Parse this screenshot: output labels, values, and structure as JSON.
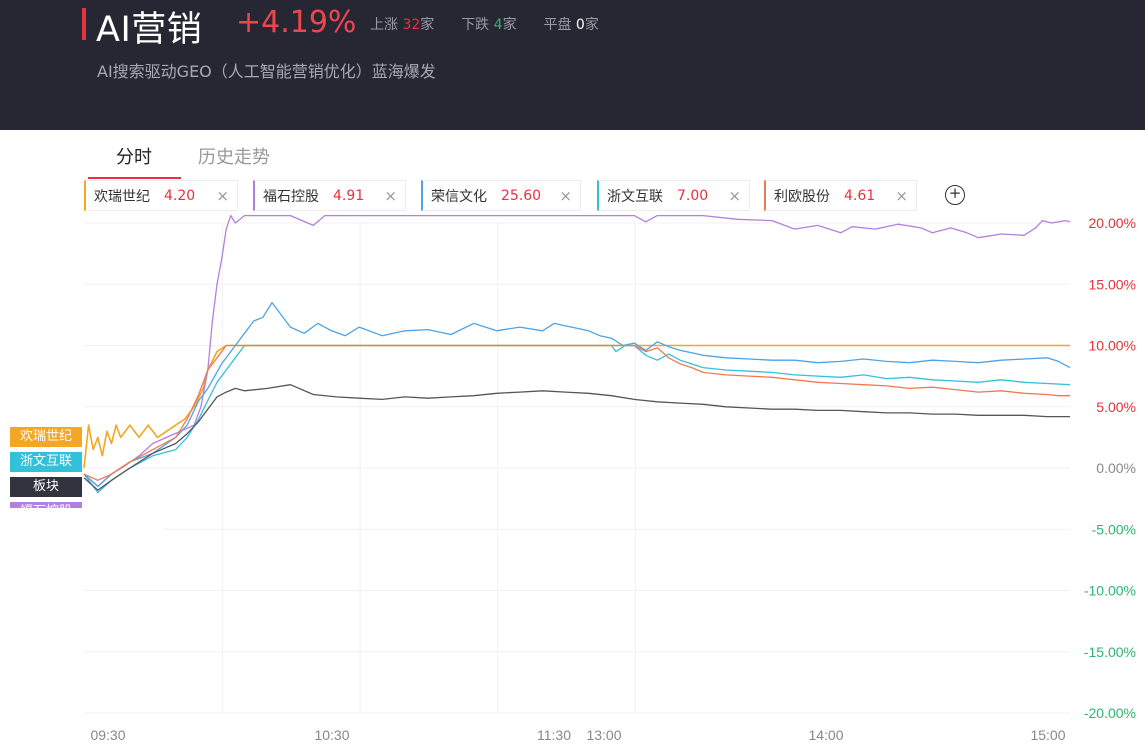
{
  "header": {
    "title": "AI营销",
    "change_pct": "+4.19%",
    "up_label": "上涨",
    "up_count": "32",
    "down_label": "下跌",
    "down_count": "4",
    "flat_label": "平盘",
    "flat_count": "0",
    "unit": "家",
    "subtitle": "AI搜索驱动GEO（人工智能营销优化）蓝海爆发"
  },
  "tabs": [
    {
      "label": "分时",
      "active": true
    },
    {
      "label": "历史走势",
      "active": false
    }
  ],
  "chips": [
    {
      "name": "欢瑞世纪",
      "value": "4.20",
      "color": "#f5a623"
    },
    {
      "name": "福石控股",
      "value": "4.91",
      "color": "#b57fe0"
    },
    {
      "name": "荣信文化",
      "value": "25.60",
      "color": "#4da3e8"
    },
    {
      "name": "浙文互联",
      "value": "7.00",
      "color": "#33c1d9"
    },
    {
      "name": "利欧股份",
      "value": "4.61",
      "color": "#f07a50"
    }
  ],
  "chip_close_icon": "×",
  "add_icon": "+",
  "legend_labels": [
    {
      "label": "欢瑞世纪",
      "color": "#f5a623"
    },
    {
      "label": "浙文互联",
      "color": "#33c1d9"
    },
    {
      "label": "板块",
      "color": "#333340"
    },
    {
      "label": "福石控股",
      "color": "#b57fe0"
    }
  ],
  "chart_data": {
    "type": "line",
    "x_ticks": [
      "09:30",
      "10:30",
      "11:30",
      "13:00",
      "14:00",
      "15:00"
    ],
    "y_ticks": [
      "20.00%",
      "15.00%",
      "10.00%",
      "5.00%",
      "0.00%",
      "-5.00%",
      "-10.00%",
      "-15.00%",
      "-20.00%"
    ],
    "ylim": [
      -20,
      20
    ],
    "x_sessions": [
      "09:30-11:30",
      "13:00-15:00"
    ],
    "series": [
      {
        "name": "福石控股",
        "color": "#b57fe0",
        "points": [
          [
            0,
            -0.5
          ],
          [
            6,
            -1.5
          ],
          [
            12,
            -0.5
          ],
          [
            18,
            0.2
          ],
          [
            24,
            1
          ],
          [
            30,
            2
          ],
          [
            36,
            2.5
          ],
          [
            42,
            3
          ],
          [
            48,
            3.5
          ],
          [
            51,
            5
          ],
          [
            54,
            8
          ],
          [
            56,
            12
          ],
          [
            58,
            15
          ],
          [
            60,
            17
          ],
          [
            62,
            19.5
          ],
          [
            64,
            20.6
          ],
          [
            66,
            20
          ],
          [
            70,
            20.6
          ],
          [
            75,
            20.6
          ],
          [
            90,
            20.6
          ],
          [
            100,
            19.8
          ],
          [
            105,
            20.6
          ],
          [
            240,
            20.6
          ],
          [
            245,
            20.1
          ],
          [
            250,
            20.6
          ],
          [
            270,
            20.6
          ],
          [
            285,
            20.3
          ],
          [
            300,
            20.2
          ],
          [
            310,
            19.5
          ],
          [
            320,
            19.8
          ],
          [
            330,
            19.2
          ],
          [
            335,
            19.7
          ],
          [
            345,
            19.5
          ],
          [
            355,
            19.9
          ],
          [
            365,
            19.6
          ],
          [
            370,
            19.2
          ],
          [
            378,
            19.6
          ],
          [
            385,
            19.2
          ],
          [
            390,
            18.8
          ],
          [
            400,
            19.1
          ],
          [
            410,
            19.0
          ],
          [
            415,
            19.6
          ],
          [
            418,
            20.2
          ],
          [
            422,
            20.0
          ],
          [
            428,
            20.2
          ],
          [
            430,
            20.1
          ]
        ]
      },
      {
        "name": "荣信文化",
        "color": "#4da3e8",
        "points": [
          [
            0,
            -0.5
          ],
          [
            6,
            -1.5
          ],
          [
            12,
            -0.5
          ],
          [
            20,
            0.5
          ],
          [
            30,
            1.2
          ],
          [
            40,
            2.5
          ],
          [
            45,
            3.5
          ],
          [
            50,
            5.5
          ],
          [
            54,
            6.5
          ],
          [
            60,
            8.5
          ],
          [
            66,
            10
          ],
          [
            70,
            11
          ],
          [
            74,
            12
          ],
          [
            78,
            12.3
          ],
          [
            82,
            13.5
          ],
          [
            86,
            12.5
          ],
          [
            90,
            11.5
          ],
          [
            96,
            11
          ],
          [
            102,
            11.8
          ],
          [
            108,
            11.2
          ],
          [
            114,
            10.8
          ],
          [
            120,
            11.5
          ],
          [
            130,
            10.8
          ],
          [
            140,
            11.2
          ],
          [
            150,
            11.3
          ],
          [
            160,
            10.9
          ],
          [
            170,
            11.8
          ],
          [
            180,
            11.2
          ],
          [
            190,
            11.5
          ],
          [
            200,
            11.2
          ],
          [
            205,
            11.8
          ],
          [
            210,
            11.6
          ],
          [
            215,
            11.4
          ],
          [
            220,
            11.2
          ],
          [
            225,
            10.8
          ],
          [
            230,
            10.6
          ],
          [
            235,
            10.0
          ],
          [
            240,
            10.2
          ],
          [
            245,
            9.6
          ],
          [
            250,
            10.3
          ],
          [
            255,
            9.9
          ],
          [
            260,
            9.6
          ],
          [
            265,
            9.4
          ],
          [
            270,
            9.2
          ],
          [
            280,
            9.0
          ],
          [
            290,
            8.9
          ],
          [
            300,
            8.8
          ],
          [
            310,
            8.8
          ],
          [
            320,
            8.6
          ],
          [
            330,
            8.7
          ],
          [
            340,
            8.9
          ],
          [
            350,
            8.7
          ],
          [
            360,
            8.6
          ],
          [
            370,
            8.8
          ],
          [
            380,
            8.7
          ],
          [
            390,
            8.6
          ],
          [
            400,
            8.8
          ],
          [
            410,
            8.9
          ],
          [
            420,
            9.0
          ],
          [
            425,
            8.7
          ],
          [
            430,
            8.2
          ]
        ]
      },
      {
        "name": "浙文互联",
        "color": "#33c1d9",
        "points": [
          [
            0,
            -0.5
          ],
          [
            6,
            -2
          ],
          [
            12,
            -1
          ],
          [
            20,
            0
          ],
          [
            30,
            1
          ],
          [
            40,
            1.5
          ],
          [
            45,
            2.5
          ],
          [
            50,
            4
          ],
          [
            54,
            5.5
          ],
          [
            58,
            7
          ],
          [
            62,
            8
          ],
          [
            66,
            9
          ],
          [
            70,
            10
          ],
          [
            75,
            10
          ],
          [
            90,
            10
          ],
          [
            200,
            10
          ],
          [
            230,
            10
          ],
          [
            232,
            9.5
          ],
          [
            236,
            10
          ],
          [
            240,
            10
          ],
          [
            245,
            9.2
          ],
          [
            250,
            8.8
          ],
          [
            255,
            9.3
          ],
          [
            260,
            8.8
          ],
          [
            265,
            8.5
          ],
          [
            270,
            8.2
          ],
          [
            280,
            8.0
          ],
          [
            290,
            7.9
          ],
          [
            300,
            7.8
          ],
          [
            310,
            7.6
          ],
          [
            320,
            7.5
          ],
          [
            330,
            7.4
          ],
          [
            340,
            7.6
          ],
          [
            350,
            7.3
          ],
          [
            360,
            7.4
          ],
          [
            370,
            7.2
          ],
          [
            380,
            7.1
          ],
          [
            390,
            7.0
          ],
          [
            400,
            7.2
          ],
          [
            410,
            7.0
          ],
          [
            420,
            6.9
          ],
          [
            430,
            6.8
          ]
        ]
      },
      {
        "name": "利欧股份",
        "color": "#f07a50",
        "points": [
          [
            0,
            -0.5
          ],
          [
            6,
            -1
          ],
          [
            12,
            -0.5
          ],
          [
            20,
            0.5
          ],
          [
            30,
            1.5
          ],
          [
            40,
            2.5
          ],
          [
            45,
            4
          ],
          [
            50,
            6
          ],
          [
            54,
            8
          ],
          [
            58,
            9
          ],
          [
            62,
            10
          ],
          [
            66,
            10
          ],
          [
            90,
            10
          ],
          [
            200,
            10
          ],
          [
            240,
            10
          ],
          [
            245,
            9.5
          ],
          [
            250,
            9.8
          ],
          [
            255,
            9.0
          ],
          [
            260,
            8.5
          ],
          [
            265,
            8.2
          ],
          [
            270,
            7.8
          ],
          [
            280,
            7.6
          ],
          [
            290,
            7.5
          ],
          [
            300,
            7.4
          ],
          [
            310,
            7.2
          ],
          [
            320,
            7.0
          ],
          [
            330,
            6.9
          ],
          [
            340,
            6.8
          ],
          [
            350,
            6.7
          ],
          [
            360,
            6.5
          ],
          [
            370,
            6.6
          ],
          [
            380,
            6.4
          ],
          [
            390,
            6.2
          ],
          [
            400,
            6.3
          ],
          [
            410,
            6.1
          ],
          [
            420,
            6.0
          ],
          [
            425,
            5.9
          ],
          [
            430,
            5.9
          ]
        ]
      },
      {
        "name": "欢瑞世纪",
        "color": "#f5a623",
        "points": [
          [
            0,
            0
          ],
          [
            2,
            3.5
          ],
          [
            4,
            1.5
          ],
          [
            6,
            2.5
          ],
          [
            8,
            1
          ],
          [
            10,
            3
          ],
          [
            12,
            2
          ],
          [
            14,
            3.5
          ],
          [
            16,
            2.5
          ],
          [
            20,
            3.5
          ],
          [
            24,
            2.5
          ],
          [
            28,
            3.5
          ],
          [
            32,
            2.5
          ],
          [
            36,
            3
          ],
          [
            40,
            3.5
          ],
          [
            44,
            4
          ],
          [
            48,
            5
          ],
          [
            52,
            6.5
          ],
          [
            54,
            8
          ],
          [
            58,
            9.5
          ],
          [
            62,
            10
          ],
          [
            70,
            10
          ],
          [
            100,
            10
          ],
          [
            200,
            10
          ],
          [
            300,
            10
          ],
          [
            430,
            10
          ]
        ]
      },
      {
        "name": "板块",
        "color": "#555560",
        "points": [
          [
            0,
            -0.8
          ],
          [
            6,
            -1.8
          ],
          [
            12,
            -1
          ],
          [
            20,
            0
          ],
          [
            30,
            1.2
          ],
          [
            40,
            2
          ],
          [
            45,
            2.8
          ],
          [
            50,
            3.8
          ],
          [
            54,
            4.8
          ],
          [
            58,
            5.8
          ],
          [
            62,
            6.2
          ],
          [
            66,
            6.5
          ],
          [
            70,
            6.3
          ],
          [
            80,
            6.5
          ],
          [
            90,
            6.8
          ],
          [
            100,
            6.0
          ],
          [
            110,
            5.8
          ],
          [
            120,
            5.7
          ],
          [
            130,
            5.6
          ],
          [
            140,
            5.8
          ],
          [
            150,
            5.7
          ],
          [
            160,
            5.8
          ],
          [
            170,
            5.9
          ],
          [
            180,
            6.1
          ],
          [
            190,
            6.2
          ],
          [
            200,
            6.3
          ],
          [
            210,
            6.2
          ],
          [
            220,
            6.1
          ],
          [
            230,
            5.9
          ],
          [
            240,
            5.6
          ],
          [
            250,
            5.4
          ],
          [
            260,
            5.3
          ],
          [
            270,
            5.2
          ],
          [
            280,
            5.0
          ],
          [
            290,
            4.9
          ],
          [
            300,
            4.8
          ],
          [
            310,
            4.8
          ],
          [
            320,
            4.7
          ],
          [
            330,
            4.7
          ],
          [
            340,
            4.6
          ],
          [
            350,
            4.5
          ],
          [
            360,
            4.5
          ],
          [
            370,
            4.4
          ],
          [
            380,
            4.4
          ],
          [
            390,
            4.3
          ],
          [
            400,
            4.3
          ],
          [
            410,
            4.3
          ],
          [
            420,
            4.2
          ],
          [
            430,
            4.2
          ]
        ]
      }
    ]
  }
}
